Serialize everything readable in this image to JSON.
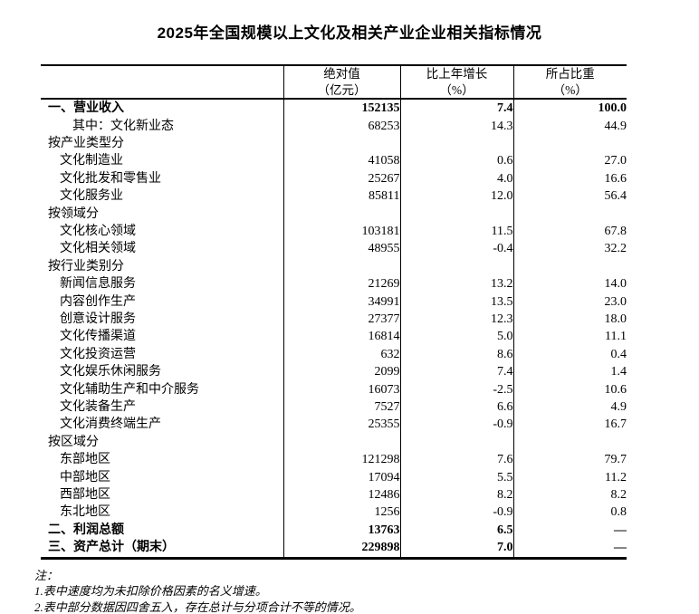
{
  "page": {
    "title": "2025年全国规模以上文化及相关产业企业相关指标情况"
  },
  "table": {
    "column_headers": [
      {
        "line1": "绝对值",
        "line2": "（亿元）"
      },
      {
        "line1": "比上年增长",
        "line2": "（%）"
      },
      {
        "line1": "所占比重",
        "line2": "（%）"
      }
    ],
    "rows": [
      {
        "label": "一、营业收入",
        "indent": 0,
        "bold": true,
        "absolute": "152135",
        "growth": "7.4",
        "share": "100.0"
      },
      {
        "label": "其中：文化新业态",
        "indent": 2,
        "bold": false,
        "absolute": "68253",
        "growth": "14.3",
        "share": "44.9"
      },
      {
        "label": "按产业类型分",
        "indent": 0,
        "bold": false,
        "absolute": "",
        "growth": "",
        "share": ""
      },
      {
        "label": "文化制造业",
        "indent": 1,
        "bold": false,
        "absolute": "41058",
        "growth": "0.6",
        "share": "27.0"
      },
      {
        "label": "文化批发和零售业",
        "indent": 1,
        "bold": false,
        "absolute": "25267",
        "growth": "4.0",
        "share": "16.6"
      },
      {
        "label": "文化服务业",
        "indent": 1,
        "bold": false,
        "absolute": "85811",
        "growth": "12.0",
        "share": "56.4"
      },
      {
        "label": "按领域分",
        "indent": 0,
        "bold": false,
        "absolute": "",
        "growth": "",
        "share": ""
      },
      {
        "label": "文化核心领域",
        "indent": 1,
        "bold": false,
        "absolute": "103181",
        "growth": "11.5",
        "share": "67.8"
      },
      {
        "label": "文化相关领域",
        "indent": 1,
        "bold": false,
        "absolute": "48955",
        "growth": "-0.4",
        "share": "32.2"
      },
      {
        "label": "按行业类别分",
        "indent": 0,
        "bold": false,
        "absolute": "",
        "growth": "",
        "share": ""
      },
      {
        "label": "新闻信息服务",
        "indent": 1,
        "bold": false,
        "absolute": "21269",
        "growth": "13.2",
        "share": "14.0"
      },
      {
        "label": "内容创作生产",
        "indent": 1,
        "bold": false,
        "absolute": "34991",
        "growth": "13.5",
        "share": "23.0"
      },
      {
        "label": "创意设计服务",
        "indent": 1,
        "bold": false,
        "absolute": "27377",
        "growth": "12.3",
        "share": "18.0"
      },
      {
        "label": "文化传播渠道",
        "indent": 1,
        "bold": false,
        "absolute": "16814",
        "growth": "5.0",
        "share": "11.1"
      },
      {
        "label": "文化投资运营",
        "indent": 1,
        "bold": false,
        "absolute": "632",
        "growth": "8.6",
        "share": "0.4"
      },
      {
        "label": "文化娱乐休闲服务",
        "indent": 1,
        "bold": false,
        "absolute": "2099",
        "growth": "7.4",
        "share": "1.4"
      },
      {
        "label": "文化辅助生产和中介服务",
        "indent": 1,
        "bold": false,
        "absolute": "16073",
        "growth": "-2.5",
        "share": "10.6"
      },
      {
        "label": "文化装备生产",
        "indent": 1,
        "bold": false,
        "absolute": "7527",
        "growth": "6.6",
        "share": "4.9"
      },
      {
        "label": "文化消费终端生产",
        "indent": 1,
        "bold": false,
        "absolute": "25355",
        "growth": "-0.9",
        "share": "16.7"
      },
      {
        "label": "按区域分",
        "indent": 0,
        "bold": false,
        "absolute": "",
        "growth": "",
        "share": ""
      },
      {
        "label": "东部地区",
        "indent": 1,
        "bold": false,
        "absolute": "121298",
        "growth": "7.6",
        "share": "79.7"
      },
      {
        "label": "中部地区",
        "indent": 1,
        "bold": false,
        "absolute": "17094",
        "growth": "5.5",
        "share": "11.2"
      },
      {
        "label": "西部地区",
        "indent": 1,
        "bold": false,
        "absolute": "12486",
        "growth": "8.2",
        "share": "8.2"
      },
      {
        "label": "东北地区",
        "indent": 1,
        "bold": false,
        "absolute": "1256",
        "growth": "-0.9",
        "share": "0.8"
      },
      {
        "label": "二、利润总额",
        "indent": 0,
        "bold": true,
        "absolute": "13763",
        "growth": "6.5",
        "share": "—"
      },
      {
        "label": "三、资产总计（期末）",
        "indent": 0,
        "bold": true,
        "absolute": "229898",
        "growth": "7.0",
        "share": "—"
      }
    ]
  },
  "notes": {
    "label": "注：",
    "items": [
      "1.表中速度均为未扣除价格因素的名义增速。",
      "2.表中部分数据因四舍五入，存在总计与分项合计不等的情况。"
    ]
  },
  "colors": {
    "text": "#000000",
    "border": "#000000",
    "background": "#ffffff"
  }
}
